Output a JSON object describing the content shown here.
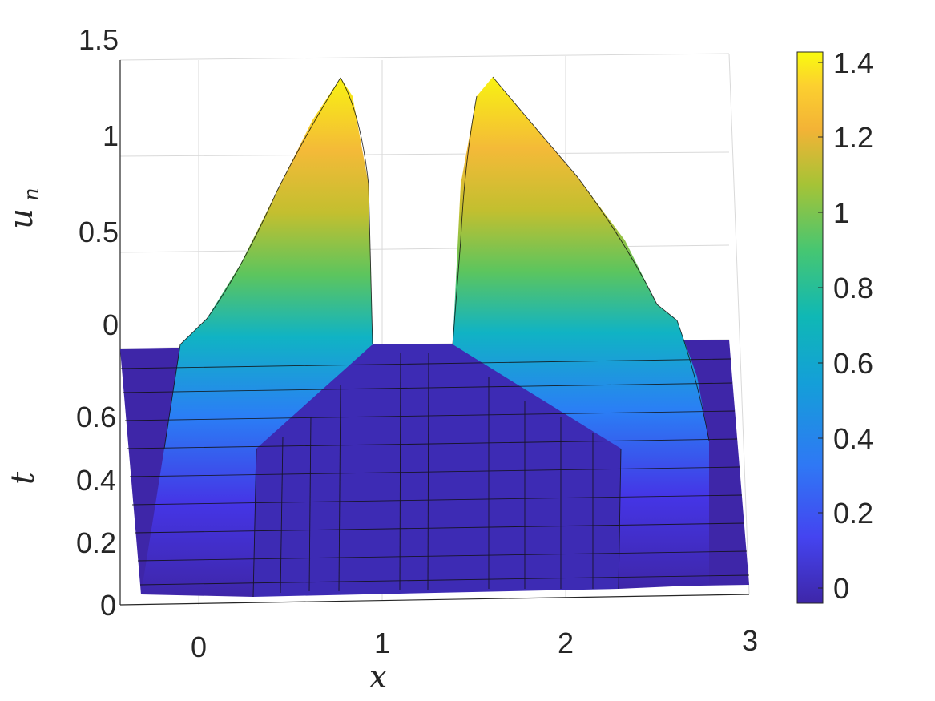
{
  "chart_data": {
    "type": "surface",
    "colormap": "parula",
    "xlabel": "x",
    "ylabel": "t",
    "zlabel": "u",
    "zlabel_subscript": "n",
    "x_ticks": [
      "0",
      "1",
      "2",
      "3"
    ],
    "y_ticks": [
      "0",
      "0.2",
      "0.4",
      "0.6"
    ],
    "z_ticks": [
      "0",
      "0.5",
      "1",
      "1.5"
    ],
    "colorbar_ticks": [
      "0",
      "0.2",
      "0.4",
      "0.6",
      "0.8",
      "1",
      "1.2",
      "1.4"
    ],
    "colorbar_range": [
      -0.05,
      1.42
    ],
    "xlim": [
      -0.4,
      3
    ],
    "ylim": [
      0,
      0.8
    ],
    "zlim": [
      0,
      1.5
    ],
    "grid": true,
    "series": [
      {
        "name": "",
        "t": 0.0,
        "x_start": 0.3,
        "x_end": 2.25,
        "peak": 0.0
      },
      {
        "name": "",
        "t": 0.76,
        "x_left_peak": 0.75,
        "x_right_peak": 1.65,
        "peak": 1.42
      }
    ]
  }
}
